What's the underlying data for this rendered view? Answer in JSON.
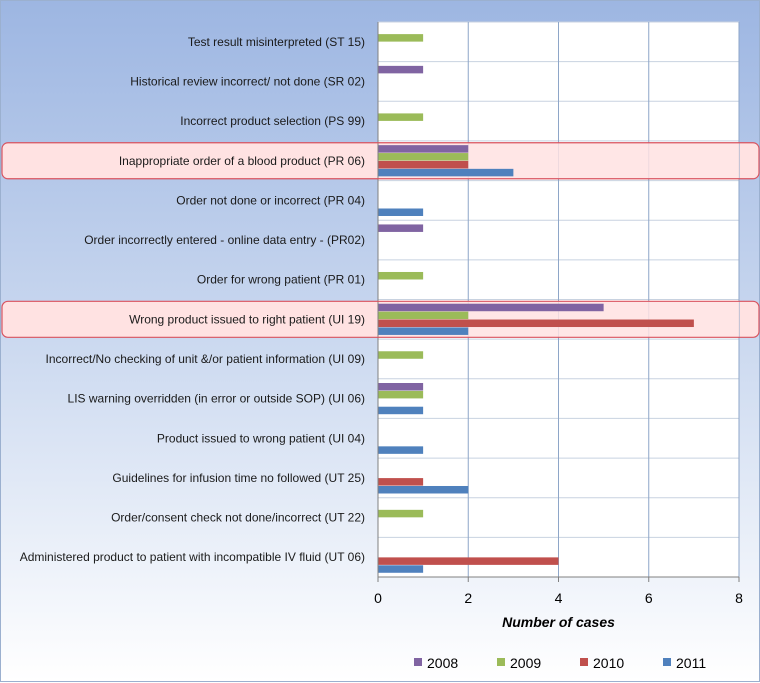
{
  "chart_data": {
    "type": "bar",
    "orientation": "horizontal",
    "title": "",
    "xlabel": "Number of cases",
    "ylabel": "",
    "xlim": [
      0,
      8
    ],
    "xticks": [
      "0",
      "2",
      "4",
      "6",
      "8"
    ],
    "grid": true,
    "legend_position": "bottom",
    "categories": [
      "Test result misinterpreted (ST 15)",
      "Historical review incorrect/ not done (SR 02)",
      "Incorrect product selection (PS 99)",
      "Inappropriate order of a blood product (PR 06)",
      "Order not done or incorrect (PR 04)",
      "Order incorrectly entered - online data entry - (PR02)",
      "Order for wrong patient (PR 01)",
      "Wrong product issued to right patient (UI 19)",
      "Incorrect/No checking of unit &/or patient information (UI 09)",
      "LIS warning overridden (in error or outside SOP) (UI 06)",
      "Product issued to wrong patient (UI 04)",
      "Guidelines for infusion time no followed (UT 25)",
      "Order/consent check not done/incorrect (UT 22)",
      "Administered product to patient with incompatible IV fluid (UT 06)"
    ],
    "series": [
      {
        "name": "2008",
        "color": "#8064a2",
        "values": [
          0,
          1,
          0,
          2,
          0,
          1,
          0,
          5,
          0,
          1,
          0,
          0,
          0,
          0
        ]
      },
      {
        "name": "2009",
        "color": "#9bbb59",
        "values": [
          1,
          0,
          1,
          2,
          0,
          0,
          1,
          2,
          1,
          1,
          0,
          0,
          1,
          0
        ]
      },
      {
        "name": "2010",
        "color": "#c0504d",
        "values": [
          0,
          0,
          0,
          2,
          0,
          0,
          0,
          7,
          0,
          0,
          0,
          1,
          0,
          4
        ]
      },
      {
        "name": "2011",
        "color": "#4f81bd",
        "values": [
          0,
          0,
          0,
          3,
          1,
          0,
          0,
          2,
          0,
          1,
          1,
          2,
          0,
          1
        ]
      }
    ],
    "highlighted_categories": [
      3,
      7
    ],
    "highlight_color": "#ffe2e2",
    "highlight_border_color": "#d9535f"
  }
}
